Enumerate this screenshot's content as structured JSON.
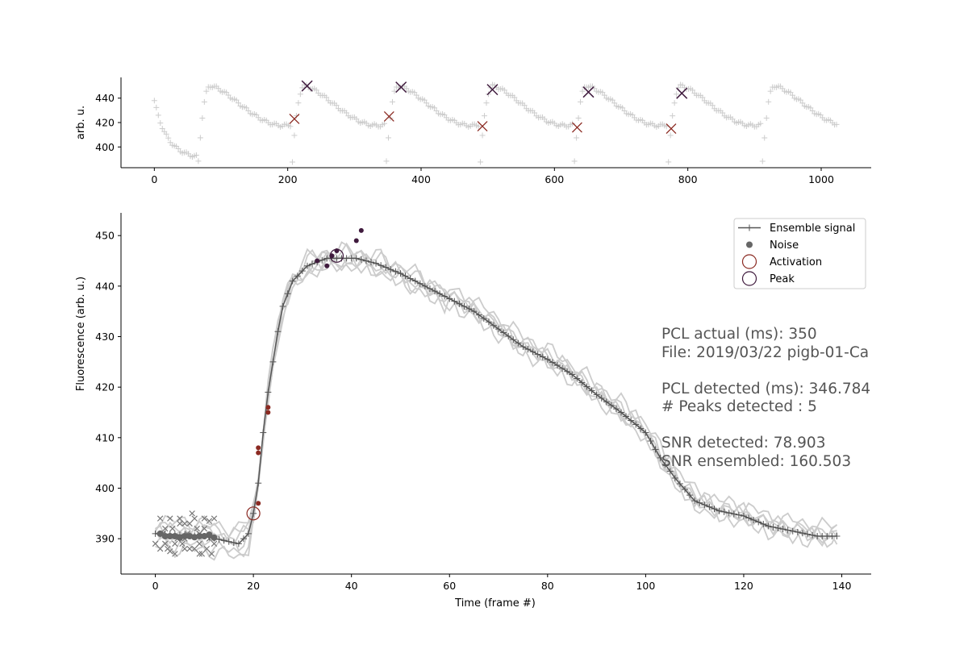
{
  "chart_data": [
    {
      "type": "scatter",
      "panel": "top",
      "title": "",
      "xlabel": "",
      "ylabel": "arb. u.",
      "xlim": [
        -50,
        1075
      ],
      "ylim": [
        383,
        457
      ],
      "xticks": [
        0,
        200,
        400,
        600,
        800,
        1000
      ],
      "yticks": [
        400,
        420,
        440
      ],
      "signal": {
        "cycle_length_frames": 143,
        "baseline": 388,
        "peak": 450,
        "upstroke_starts": [
          66,
          207,
          348,
          489,
          630,
          771,
          912
        ],
        "x_end": 1025,
        "color": "#cccccc"
      },
      "series": [
        {
          "name": "Activation",
          "color": "#8b2a22",
          "points": [
            [
              210,
              423
            ],
            [
              352,
              425
            ],
            [
              492,
              417
            ],
            [
              634,
              416
            ],
            [
              775,
              415
            ]
          ]
        },
        {
          "name": "Peak",
          "color": "#3f1a3d",
          "points": [
            [
              229,
              450
            ],
            [
              370,
              449
            ],
            [
              507,
              447
            ],
            [
              651,
              445
            ],
            [
              791,
              444
            ]
          ]
        }
      ]
    },
    {
      "type": "line",
      "panel": "bottom",
      "title": "",
      "xlabel": "Time (frame #)",
      "ylabel": "Fluorescence (arb. u.)",
      "xlim": [
        -7,
        146
      ],
      "ylim": [
        383,
        454.5
      ],
      "xticks": [
        0,
        20,
        40,
        60,
        80,
        100,
        120,
        140
      ],
      "yticks": [
        390,
        400,
        410,
        420,
        430,
        440,
        450
      ],
      "ensemble": {
        "name": "Ensemble signal",
        "color": "#555555",
        "frames": 140,
        "knots": [
          [
            0,
            391
          ],
          [
            10,
            390.5
          ],
          [
            17,
            389
          ],
          [
            19,
            391
          ],
          [
            20,
            395
          ],
          [
            21,
            401
          ],
          [
            22,
            411
          ],
          [
            23,
            419
          ],
          [
            24,
            425
          ],
          [
            25,
            431
          ],
          [
            26,
            436
          ],
          [
            28,
            441
          ],
          [
            31,
            444
          ],
          [
            35,
            445.5
          ],
          [
            41,
            445.5
          ],
          [
            45,
            444.5
          ],
          [
            50,
            442.5
          ],
          [
            55,
            440
          ],
          [
            60,
            437.5
          ],
          [
            65,
            435
          ],
          [
            70,
            431.5
          ],
          [
            75,
            428
          ],
          [
            80,
            425.5
          ],
          [
            85,
            422.5
          ],
          [
            90,
            418.5
          ],
          [
            95,
            415
          ],
          [
            100,
            411
          ],
          [
            103,
            406
          ],
          [
            106,
            402
          ],
          [
            110,
            397.5
          ],
          [
            115,
            395.5
          ],
          [
            120,
            394.5
          ],
          [
            125,
            392.5
          ],
          [
            130,
            391.5
          ],
          [
            135,
            390.5
          ],
          [
            139,
            390.5
          ]
        ]
      },
      "noise_baseline": {
        "name": "Noise",
        "color": "#666666",
        "x": [
          1,
          2,
          3,
          4,
          5,
          6,
          7,
          8,
          9,
          10,
          11,
          12
        ],
        "y": [
          391,
          390.5,
          390.5,
          390.5,
          390.2,
          390.5,
          390.5,
          390.3,
          390.5,
          390.5,
          390.8,
          390.2
        ]
      },
      "rejected_points": {
        "color": "#777777",
        "x": [
          0,
          1,
          1.5,
          2,
          2.5,
          3,
          3.5,
          4,
          4.5,
          5,
          5.5,
          6,
          6.5,
          7,
          7.5,
          8,
          8.5,
          9,
          9.5,
          10,
          10.5,
          11,
          11.5,
          12,
          2,
          4,
          6,
          8,
          10,
          12,
          3,
          5,
          7,
          9,
          11,
          1,
          6,
          9
        ],
        "y": [
          389,
          394,
          391,
          389,
          388,
          394,
          392,
          387,
          390,
          394,
          389,
          388,
          391,
          393,
          395,
          388,
          392,
          389,
          387,
          394,
          388,
          390,
          387,
          394,
          392,
          389,
          390,
          394,
          392,
          389,
          387.5,
          393,
          388,
          391,
          393.5,
          388,
          393,
          387
        ]
      },
      "traces": {
        "color": "#cccccc",
        "offsets": [
          [
            0,
            0,
            0
          ],
          [
            2,
            1.5,
            -1
          ],
          [
            -2,
            -1.5,
            1
          ],
          [
            3,
            1,
            0.5
          ],
          [
            -3,
            -1,
            -0.5
          ],
          [
            1,
            -1,
            2
          ]
        ]
      },
      "activation_dots": {
        "color": "#8b2a22",
        "points": [
          [
            21,
            407
          ],
          [
            21,
            408
          ],
          [
            21,
            397
          ],
          [
            23,
            415
          ],
          [
            23,
            416
          ]
        ]
      },
      "peak_dots": {
        "color": "#3f1a3d",
        "points": [
          [
            33,
            445
          ],
          [
            35,
            444
          ],
          [
            36,
            446
          ],
          [
            37,
            447
          ],
          [
            41,
            449
          ],
          [
            42,
            451
          ]
        ]
      },
      "markers": {
        "activation": {
          "name": "Activation",
          "x": 20,
          "y": 395,
          "color": "#8b2a22"
        },
        "peak": {
          "name": "Peak",
          "x": 37,
          "y": 446,
          "color": "#3f1a3d"
        }
      },
      "legend": {
        "placement": "top-right",
        "entries": [
          "Ensemble signal",
          "Noise",
          "Activation",
          "Peak"
        ]
      }
    }
  ],
  "annotations": {
    "pcl_actual": "PCL actual (ms): 350",
    "file": "File: 2019/03/22 pigb-01-Ca",
    "pcl_detected": "PCL detected (ms): 346.784",
    "peaks_detected": "# Peaks detected : 5",
    "snr_detected": "SNR detected: 78.903",
    "snr_ensembled": "SNR ensembled: 160.503"
  }
}
